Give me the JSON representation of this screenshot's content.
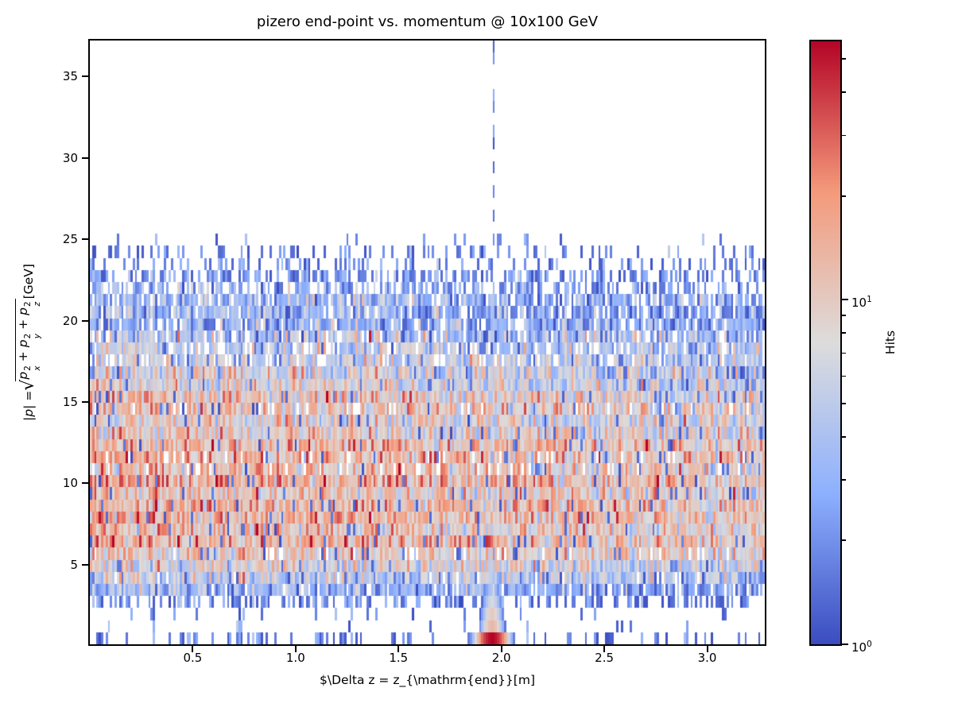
{
  "figure": {
    "background": "#ffffff"
  },
  "chart_data": {
    "type": "heatmap",
    "title": "pizero end-point vs. momentum @ 10x100 GeV",
    "xlabel": "$\\Delta z = z_{\\mathrm{end}}[m]",
    "ylabel": {
      "prefix": "|p| = ",
      "radicand": [
        {
          "base": "p",
          "sup": "2",
          "sub": "x"
        },
        {
          "base": "p",
          "sup": "2",
          "sub": "y"
        },
        {
          "base": "p",
          "sup": "2",
          "sub": "z"
        }
      ],
      "joiner": " + ",
      "suffix": " [GeV]"
    },
    "x_range": [
      0.0,
      3.28
    ],
    "y_range": [
      0.12,
      37.2
    ],
    "x_ticks": [
      0.5,
      1.0,
      1.5,
      2.0,
      2.5,
      3.0
    ],
    "x_tick_labels": [
      "0.5",
      "1.0",
      "1.5",
      "2.0",
      "2.5",
      "3.0"
    ],
    "y_ticks": [
      5,
      10,
      15,
      20,
      25,
      30,
      35
    ],
    "y_tick_labels": [
      "5",
      "10",
      "15",
      "20",
      "25",
      "30",
      "35"
    ],
    "grid": false,
    "legend": "none",
    "colorbar": {
      "label": "Hits",
      "scale": "log",
      "vmin": 1,
      "vmax": 56.3,
      "major_ticks": [
        {
          "value": 1,
          "base": "10",
          "exp": "0"
        },
        {
          "value": 10,
          "base": "10",
          "exp": "1"
        }
      ],
      "minor_ticks": [
        2,
        3,
        4,
        5,
        6,
        7,
        8,
        9,
        20,
        30,
        40,
        50
      ],
      "colormap": "coolwarm",
      "colormap_stops": [
        "#3b4cc0",
        "#8db0fe",
        "#dddcdc",
        "#f49a7b",
        "#b40426"
      ]
    },
    "features": [
      "dense band of hits spanning full delta-z range for momentum ~1-24.5 GeV; warm salmon (10-20 hits) around 5-15 GeV, fading to sparse dark blue (1-2 hits) near 24.5 GeV",
      "warm colors slightly stronger at low delta-z (left side), paler toward right",
      "hot spot of up to ~50 hits (dark red) at delta-z ~1.95 m in lowest momentum row, with salmon column fading upward to ~3.5 GeV",
      "sparse dashed vertical line of 1-3 hit bins at delta-z ~1.96 m extending from 25 GeV up to ~37 GeV",
      "near-empty gap at momentum ~1-3 GeV with only scattered single hits",
      "bottom row (<1 GeV) has scattered blue single hits across the full delta-z range",
      "region above ~25 GeV empty except the dashed spike"
    ],
    "generation": {
      "seed": 7,
      "nx": 300,
      "ny": 50,
      "noise_sigma": 0.55,
      "x_fade": {
        "left": 1.22,
        "right": 0.8
      },
      "bands": [
        [
          0.86,
          0.5,
          1.5
        ],
        [
          1.6,
          0.06,
          1.3
        ],
        [
          2.35,
          0.12,
          1.4
        ],
        [
          3.1,
          0.58,
          1.7
        ],
        [
          3.85,
          0.9,
          2.6
        ],
        [
          4.6,
          0.95,
          4.2
        ],
        [
          6.0,
          0.97,
          7.5
        ],
        [
          8.0,
          0.985,
          10.5
        ],
        [
          11.0,
          0.985,
          12.0
        ],
        [
          13.0,
          0.98,
          10.5
        ],
        [
          15.5,
          0.97,
          8.5
        ],
        [
          17.5,
          0.95,
          6.0
        ],
        [
          19.5,
          0.9,
          4.2
        ],
        [
          21.5,
          0.8,
          2.9
        ],
        [
          23.2,
          0.62,
          1.9
        ],
        [
          24.8,
          0.36,
          1.3
        ],
        [
          25.4,
          0.07,
          1.2
        ],
        [
          37.3,
          0.0,
          0.0
        ]
      ],
      "hotspot": {
        "x": 1.955,
        "rows": [
          {
            "pmax": 0.86,
            "amp": 56,
            "sigma": 0.04
          },
          {
            "pmax": 1.6,
            "amp": 13,
            "sigma": 0.03
          },
          {
            "pmax": 2.35,
            "amp": 10,
            "sigma": 0.028
          },
          {
            "pmax": 3.1,
            "amp": 7,
            "sigma": 0.026
          },
          {
            "pmax": 3.85,
            "amp": 4.5,
            "sigma": 0.024
          }
        ]
      },
      "spike": {
        "x": 1.962,
        "p_min": 24.9,
        "occupancy": 0.42,
        "v_max": 2.8
      }
    }
  }
}
